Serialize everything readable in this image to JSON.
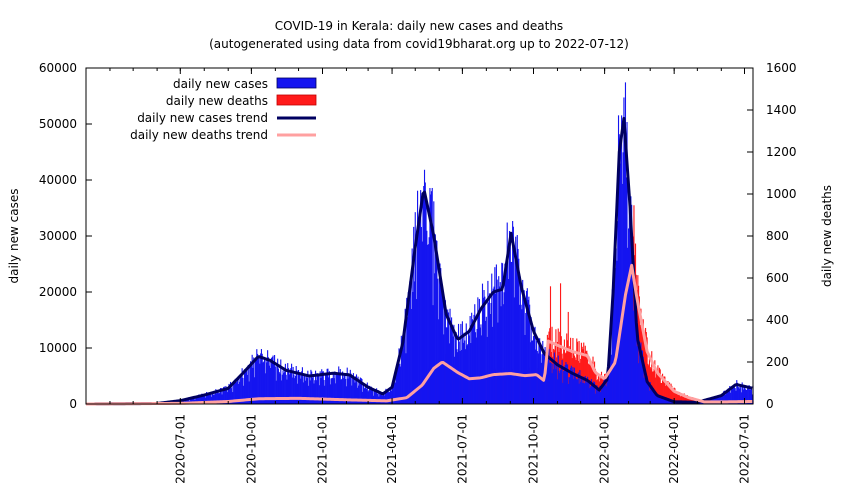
{
  "chart_data": {
    "type": "bar",
    "title": "COVID-19 in Kerala: daily new cases and deaths",
    "subtitle": "(autogenerated using data from covid19bharat.org up to 2022-07-12)",
    "ylabel_left": "daily new cases",
    "ylabel_right": "daily new deaths",
    "ylim_left": [
      0,
      60000
    ],
    "ylim_right": [
      0,
      1600
    ],
    "yticks_left": [
      "0",
      "10000",
      "20000",
      "30000",
      "40000",
      "50000",
      "60000"
    ],
    "yticks_right": [
      "0",
      "200",
      "400",
      "600",
      "800",
      "1000",
      "1200",
      "1400",
      "1600"
    ],
    "xticks": [
      "2020-07-01",
      "2020-10-01",
      "2021-01-01",
      "2021-04-01",
      "2021-07-01",
      "2021-10-01",
      "2022-01-01",
      "2022-04-01",
      "2022-07-01"
    ],
    "legend": {
      "placement": "top-left",
      "cases": "daily new cases",
      "deaths": "daily new deaths",
      "cases_trend": "daily new cases trend",
      "deaths_trend": "daily new deaths trend"
    },
    "colors": {
      "cases": "#1515f0",
      "deaths": "#ff1a1a",
      "cases_trend": "#000060",
      "deaths_trend": "#ffa0a0"
    },
    "x_start": "2020-03-01",
    "x_end": "2022-07-12",
    "cases_trend": [
      [
        "2020-03-01",
        0
      ],
      [
        "2020-06-01",
        100
      ],
      [
        "2020-07-01",
        600
      ],
      [
        "2020-08-01",
        1600
      ],
      [
        "2020-09-01",
        2800
      ],
      [
        "2020-09-20",
        5500
      ],
      [
        "2020-10-10",
        8500
      ],
      [
        "2020-10-25",
        7800
      ],
      [
        "2020-11-15",
        6000
      ],
      [
        "2020-12-15",
        5000
      ],
      [
        "2021-01-15",
        5500
      ],
      [
        "2021-02-05",
        5200
      ],
      [
        "2021-03-01",
        3000
      ],
      [
        "2021-03-20",
        1800
      ],
      [
        "2021-04-01",
        3000
      ],
      [
        "2021-04-15",
        11000
      ],
      [
        "2021-05-01",
        28000
      ],
      [
        "2021-05-12",
        38500
      ],
      [
        "2021-05-25",
        30000
      ],
      [
        "2021-06-10",
        16000
      ],
      [
        "2021-06-25",
        11500
      ],
      [
        "2021-07-10",
        13000
      ],
      [
        "2021-07-25",
        17000
      ],
      [
        "2021-08-10",
        20000
      ],
      [
        "2021-08-22",
        20500
      ],
      [
        "2021-09-02",
        30500
      ],
      [
        "2021-09-15",
        21000
      ],
      [
        "2021-10-01",
        13000
      ],
      [
        "2021-10-15",
        9000
      ],
      [
        "2021-11-01",
        7000
      ],
      [
        "2021-11-20",
        5500
      ],
      [
        "2021-12-10",
        4200
      ],
      [
        "2021-12-25",
        2500
      ],
      [
        "2022-01-05",
        4500
      ],
      [
        "2022-01-12",
        20000
      ],
      [
        "2022-01-20",
        45000
      ],
      [
        "2022-01-26",
        51000
      ],
      [
        "2022-02-03",
        35000
      ],
      [
        "2022-02-12",
        12000
      ],
      [
        "2022-02-25",
        4000
      ],
      [
        "2022-03-10",
        1500
      ],
      [
        "2022-04-01",
        400
      ],
      [
        "2022-05-01",
        300
      ],
      [
        "2022-06-01",
        1500
      ],
      [
        "2022-06-20",
        3500
      ],
      [
        "2022-07-12",
        2800
      ]
    ],
    "deaths_trend": [
      [
        "2020-03-01",
        0
      ],
      [
        "2020-07-01",
        3
      ],
      [
        "2020-09-01",
        12
      ],
      [
        "2020-10-10",
        25
      ],
      [
        "2020-12-01",
        27
      ],
      [
        "2021-02-01",
        20
      ],
      [
        "2021-03-25",
        15
      ],
      [
        "2021-04-20",
        30
      ],
      [
        "2021-05-10",
        90
      ],
      [
        "2021-05-25",
        170
      ],
      [
        "2021-06-05",
        200
      ],
      [
        "2021-06-25",
        150
      ],
      [
        "2021-07-10",
        120
      ],
      [
        "2021-07-25",
        125
      ],
      [
        "2021-08-10",
        140
      ],
      [
        "2021-09-01",
        145
      ],
      [
        "2021-09-20",
        135
      ],
      [
        "2021-10-05",
        140
      ],
      [
        "2021-10-15",
        110
      ],
      [
        "2021-10-20",
        300
      ],
      [
        "2021-11-01",
        280
      ],
      [
        "2021-11-20",
        250
      ],
      [
        "2021-12-10",
        230
      ],
      [
        "2021-12-20",
        150
      ],
      [
        "2022-01-01",
        120
      ],
      [
        "2022-01-15",
        200
      ],
      [
        "2022-01-28",
        520
      ],
      [
        "2022-02-05",
        660
      ],
      [
        "2022-02-12",
        500
      ],
      [
        "2022-02-25",
        250
      ],
      [
        "2022-03-10",
        150
      ],
      [
        "2022-04-01",
        60
      ],
      [
        "2022-04-20",
        30
      ],
      [
        "2022-05-10",
        10
      ],
      [
        "2022-06-01",
        10
      ],
      [
        "2022-07-12",
        12
      ]
    ]
  }
}
